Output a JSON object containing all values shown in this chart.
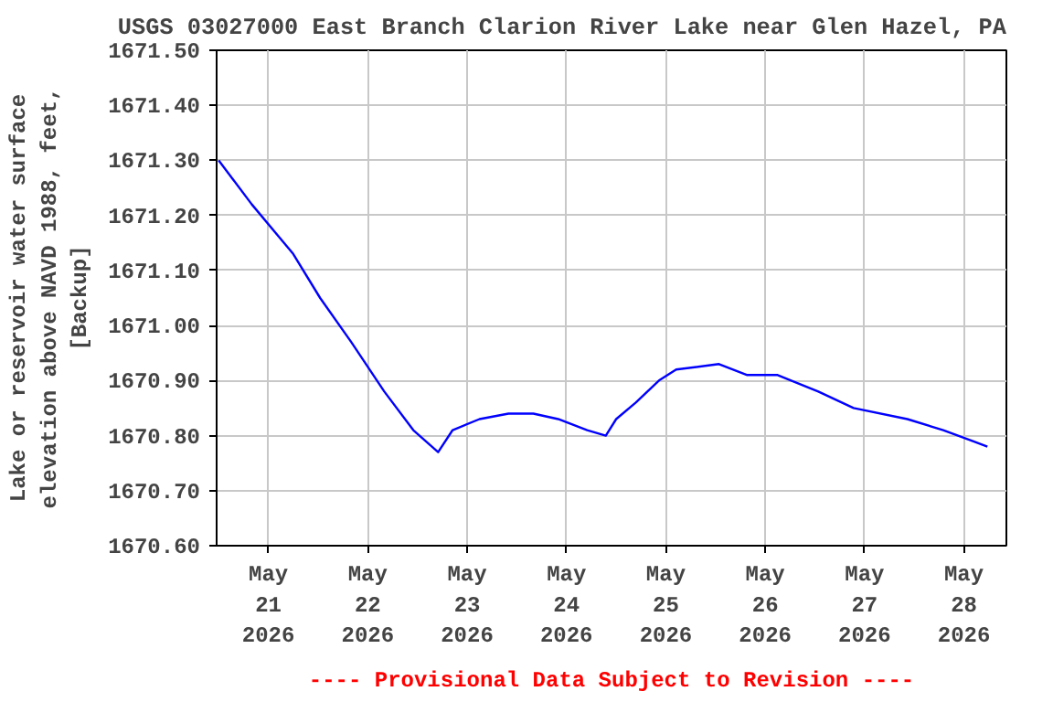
{
  "chart_data": {
    "type": "line",
    "title": "USGS 03027000 East Branch Clarion River Lake near Glen Hazel, PA",
    "ylabel": "Lake or reservoir water surface\nelevation above NAVD 1988, feet,\n[Backup]",
    "annotations": [
      "---- Provisional Data Subject to Revision ----"
    ],
    "x": [
      "2026-05-20T12:00",
      "2026-05-20T20:00",
      "2026-05-21T06:00",
      "2026-05-21T12:30",
      "2026-05-21T20:00",
      "2026-05-22T04:00",
      "2026-05-22T11:00",
      "2026-05-22T17:00",
      "2026-05-22T20:30",
      "2026-05-23T03:00",
      "2026-05-23T10:00",
      "2026-05-23T16:00",
      "2026-05-23T22:00",
      "2026-05-24T05:00",
      "2026-05-24T09:30",
      "2026-05-24T12:00",
      "2026-05-24T16:45",
      "2026-05-24T22:20",
      "2026-05-25T02:30",
      "2026-05-25T12:50",
      "2026-05-25T19:40",
      "2026-05-26T03:00",
      "2026-05-26T12:50",
      "2026-05-26T21:20",
      "2026-05-27T10:20",
      "2026-05-27T19:00",
      "2026-05-28T02:10",
      "2026-05-28T05:40"
    ],
    "series": [
      {
        "color": "#0000ff",
        "values": [
          1671.3,
          1671.22,
          1671.13,
          1671.05,
          1670.97,
          1670.88,
          1670.81,
          1670.77,
          1670.81,
          1670.83,
          1670.84,
          1670.84,
          1670.83,
          1670.81,
          1670.8,
          1670.83,
          1670.86,
          1670.9,
          1670.92,
          1670.93,
          1670.91,
          1670.91,
          1670.88,
          1670.85,
          1670.83,
          1670.81,
          1670.79,
          1670.78
        ]
      }
    ],
    "xlim": [
      "2026-05-20T11:30",
      "2026-05-28T10:15"
    ],
    "xticks": [
      {
        "value": "2026-05-21",
        "label": "May\n21\n2026"
      },
      {
        "value": "2026-05-22",
        "label": "May\n22\n2026"
      },
      {
        "value": "2026-05-23",
        "label": "May\n23\n2026"
      },
      {
        "value": "2026-05-24",
        "label": "May\n24\n2026"
      },
      {
        "value": "2026-05-25",
        "label": "May\n25\n2026"
      },
      {
        "value": "2026-05-26",
        "label": "May\n26\n2026"
      },
      {
        "value": "2026-05-27",
        "label": "May\n27\n2026"
      },
      {
        "value": "2026-05-28",
        "label": "May\n28\n2026"
      }
    ],
    "ylim": [
      1670.6,
      1671.5
    ],
    "yticks": [
      {
        "value": 1670.6,
        "label": "1670.60"
      },
      {
        "value": 1670.7,
        "label": "1670.70"
      },
      {
        "value": 1670.8,
        "label": "1670.80"
      },
      {
        "value": 1670.9,
        "label": "1670.90"
      },
      {
        "value": 1671.0,
        "label": "1671.00"
      },
      {
        "value": 1671.1,
        "label": "1671.10"
      },
      {
        "value": 1671.2,
        "label": "1671.20"
      },
      {
        "value": 1671.3,
        "label": "1671.30"
      },
      {
        "value": 1671.4,
        "label": "1671.40"
      },
      {
        "value": 1671.5,
        "label": "1671.50"
      }
    ],
    "grid": true
  }
}
